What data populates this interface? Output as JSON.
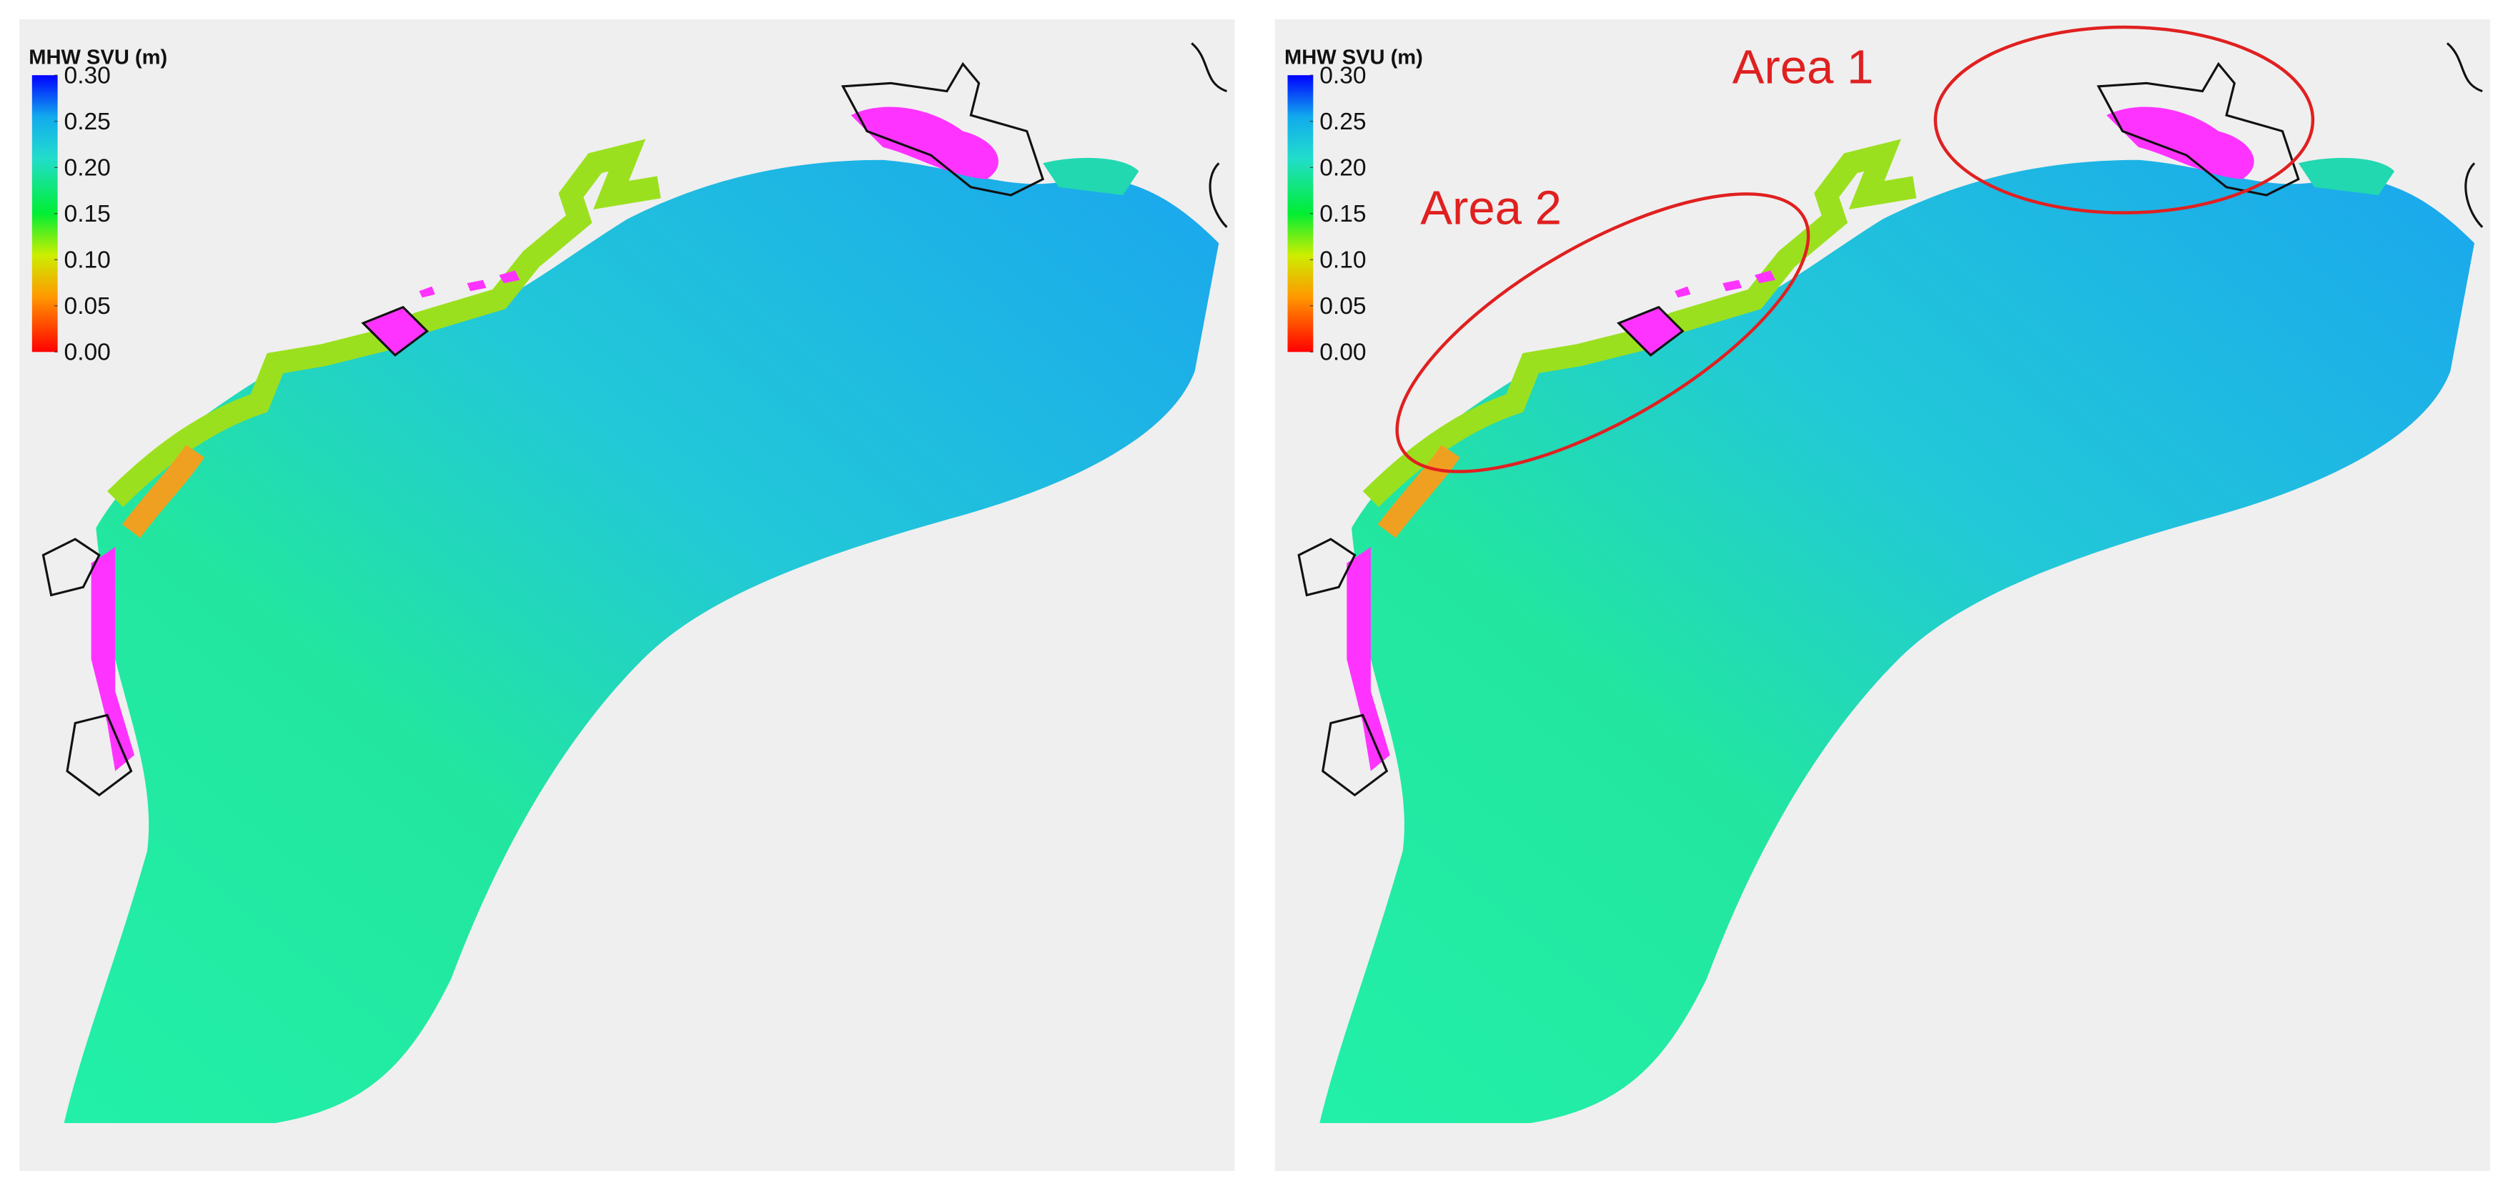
{
  "panels": [
    {
      "colorbar": {
        "title": "MHW SVU (m)",
        "range": [
          0,
          0.3
        ],
        "ticks": [
          {
            "value": 0.3,
            "label": "0.30"
          },
          {
            "value": 0.25,
            "label": "0.25"
          },
          {
            "value": 0.2,
            "label": "0.20"
          },
          {
            "value": 0.15,
            "label": "0.15"
          },
          {
            "value": 0.1,
            "label": "0.10"
          },
          {
            "value": 0.05,
            "label": "0.05"
          },
          {
            "value": 0,
            "label": "0.00"
          }
        ]
      }
    },
    {
      "colorbar": {
        "title": "MHW SVU (m)",
        "range": [
          0,
          0.3
        ],
        "ticks": [
          {
            "value": 0.3,
            "label": "0.30"
          },
          {
            "value": 0.25,
            "label": "0.25"
          },
          {
            "value": 0.2,
            "label": "0.20"
          },
          {
            "value": 0.15,
            "label": "0.15"
          },
          {
            "value": 0.1,
            "label": "0.10"
          },
          {
            "value": 0.05,
            "label": "0.05"
          },
          {
            "value": 0,
            "label": "0.00"
          }
        ]
      },
      "annotations": [
        "Area 1",
        "Area 2"
      ]
    }
  ]
}
